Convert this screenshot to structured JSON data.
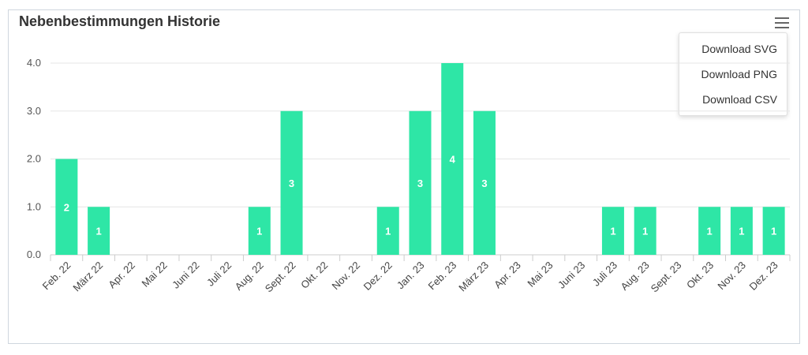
{
  "title": "Nebenbestimmungen Historie",
  "menu": {
    "icon": "hamburger-menu-icon",
    "items": [
      "Download SVG",
      "Download PNG",
      "Download CSV"
    ]
  },
  "chart_data": {
    "type": "bar",
    "title": "Nebenbestimmungen Historie",
    "xlabel": "",
    "ylabel": "",
    "ylim": [
      0,
      4
    ],
    "yticks": [
      "0.0",
      "1.0",
      "2.0",
      "3.0",
      "4.0"
    ],
    "grid": true,
    "bar_color": "#2ee6a6",
    "categories": [
      "Feb. 22",
      "März 22",
      "Apr. 22",
      "Mai 22",
      "Juni 22",
      "Juli 22",
      "Aug. 22",
      "Sept. 22",
      "Okt. 22",
      "Nov. 22",
      "Dez. 22",
      "Jan. 23",
      "Feb. 23",
      "März 23",
      "Apr. 23",
      "Mai 23",
      "Juni 23",
      "Juli 23",
      "Aug. 23",
      "Sept. 23",
      "Okt. 23",
      "Nov. 23",
      "Dez. 23"
    ],
    "values": [
      2,
      1,
      0,
      0,
      0,
      0,
      1,
      3,
      0,
      0,
      1,
      3,
      4,
      3,
      0,
      0,
      0,
      1,
      1,
      0,
      1,
      1,
      1
    ]
  }
}
